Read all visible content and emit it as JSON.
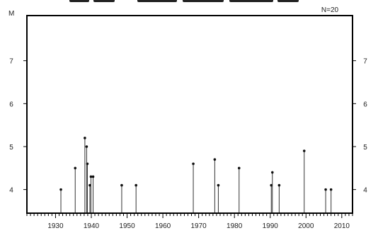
{
  "chart_data": {
    "type": "scatter",
    "style": "stem",
    "title": "",
    "xlabel": "",
    "ylabel": "M",
    "annotation": "N=20",
    "xlim": [
      1922,
      2013
    ],
    "ylim": [
      3.45,
      8.05
    ],
    "x_ticks": [
      1930,
      1940,
      1950,
      1960,
      1970,
      1980,
      1990,
      2000,
      2010
    ],
    "y_ticks": [
      4,
      5,
      6,
      7
    ],
    "stem_base": 3.45,
    "grid": false,
    "legend": "none",
    "colors": {
      "stem": "#333333",
      "frame": "#000000"
    },
    "points": [
      {
        "x": 1931.5,
        "y": 4.0
      },
      {
        "x": 1935.5,
        "y": 4.5
      },
      {
        "x": 1938.2,
        "y": 5.2
      },
      {
        "x": 1938.7,
        "y": 5.0
      },
      {
        "x": 1938.9,
        "y": 4.6
      },
      {
        "x": 1939.6,
        "y": 4.1
      },
      {
        "x": 1939.9,
        "y": 4.3
      },
      {
        "x": 1940.5,
        "y": 4.3
      },
      {
        "x": 1948.5,
        "y": 4.1
      },
      {
        "x": 1952.5,
        "y": 4.1
      },
      {
        "x": 1968.5,
        "y": 4.6
      },
      {
        "x": 1974.5,
        "y": 4.7
      },
      {
        "x": 1975.5,
        "y": 4.1
      },
      {
        "x": 1981.3,
        "y": 4.5
      },
      {
        "x": 1990.3,
        "y": 4.1
      },
      {
        "x": 1990.6,
        "y": 4.4
      },
      {
        "x": 1992.5,
        "y": 4.1
      },
      {
        "x": 1999.5,
        "y": 4.9
      },
      {
        "x": 2005.5,
        "y": 4.0
      },
      {
        "x": 2007.0,
        "y": 4.0
      }
    ]
  }
}
